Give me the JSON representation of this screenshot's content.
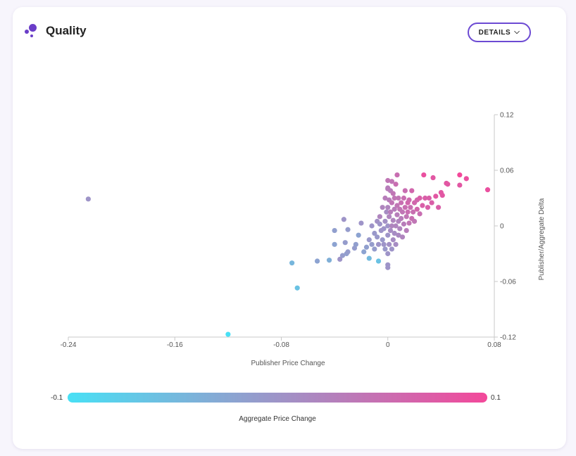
{
  "card": {
    "title": "Quality",
    "details_label": "DETAILS",
    "logo_color": "#6a3dc8",
    "accent_color": "#6c4ad3"
  },
  "chart_data": {
    "type": "scatter",
    "title": "",
    "xlabel": "Publisher Price Change",
    "ylabel": "Publisher/Aggregate Delta",
    "xlim": [
      -0.24,
      0.08
    ],
    "ylim": [
      -0.12,
      0.12
    ],
    "x_ticks": [
      "-0.24",
      "-0.16",
      "-0.08",
      "0",
      "0.08"
    ],
    "y_ticks": [
      "0.12",
      "0.06",
      "0",
      "-0.06",
      "-0.12"
    ],
    "color_scale": {
      "label": "Aggregate Price Change",
      "min_label": "-0.1",
      "max_label": "0.1",
      "min": -0.1,
      "max": 0.1,
      "min_color": "#48e0f5",
      "max_color": "#f3489a"
    },
    "points": [
      {
        "x": -0.225,
        "y": 0.029,
        "c": 0.0
      },
      {
        "x": -0.12,
        "y": -0.117,
        "c": -0.1
      },
      {
        "x": -0.072,
        "y": -0.04,
        "c": -0.045
      },
      {
        "x": -0.068,
        "y": -0.067,
        "c": -0.06
      },
      {
        "x": -0.053,
        "y": -0.038,
        "c": -0.02
      },
      {
        "x": -0.044,
        "y": -0.037,
        "c": -0.035
      },
      {
        "x": -0.036,
        "y": -0.036,
        "c": 0.0
      },
      {
        "x": -0.034,
        "y": -0.032,
        "c": -0.01
      },
      {
        "x": -0.032,
        "y": -0.018,
        "c": -0.01
      },
      {
        "x": -0.031,
        "y": -0.03,
        "c": -0.015
      },
      {
        "x": -0.04,
        "y": -0.02,
        "c": -0.02
      },
      {
        "x": -0.04,
        "y": -0.005,
        "c": -0.015
      },
      {
        "x": -0.03,
        "y": -0.028,
        "c": -0.01
      },
      {
        "x": -0.025,
        "y": -0.024,
        "c": -0.01
      },
      {
        "x": -0.033,
        "y": 0.007,
        "c": 0.0
      },
      {
        "x": -0.03,
        "y": -0.004,
        "c": -0.01
      },
      {
        "x": -0.024,
        "y": -0.02,
        "c": -0.015
      },
      {
        "x": -0.022,
        "y": -0.01,
        "c": -0.02
      },
      {
        "x": -0.02,
        "y": 0.003,
        "c": 0.0
      },
      {
        "x": -0.018,
        "y": -0.028,
        "c": -0.02
      },
      {
        "x": -0.016,
        "y": -0.023,
        "c": -0.015
      },
      {
        "x": -0.014,
        "y": -0.035,
        "c": -0.05
      },
      {
        "x": -0.014,
        "y": -0.015,
        "c": -0.005
      },
      {
        "x": -0.012,
        "y": -0.02,
        "c": -0.01
      },
      {
        "x": -0.012,
        "y": 0.0,
        "c": 0.0
      },
      {
        "x": -0.01,
        "y": -0.008,
        "c": -0.005
      },
      {
        "x": -0.01,
        "y": -0.025,
        "c": -0.01
      },
      {
        "x": -0.008,
        "y": 0.005,
        "c": 0.005
      },
      {
        "x": -0.008,
        "y": -0.012,
        "c": -0.005
      },
      {
        "x": -0.007,
        "y": -0.02,
        "c": 0.0
      },
      {
        "x": -0.006,
        "y": 0.01,
        "c": 0.02
      },
      {
        "x": -0.006,
        "y": 0.002,
        "c": 0.0
      },
      {
        "x": -0.005,
        "y": -0.005,
        "c": 0.0
      },
      {
        "x": -0.004,
        "y": -0.015,
        "c": -0.005
      },
      {
        "x": -0.007,
        "y": -0.038,
        "c": -0.06
      },
      {
        "x": -0.004,
        "y": 0.02,
        "c": 0.02
      },
      {
        "x": -0.003,
        "y": -0.02,
        "c": 0.0
      },
      {
        "x": -0.003,
        "y": -0.003,
        "c": 0.0
      },
      {
        "x": -0.002,
        "y": 0.005,
        "c": 0.005
      },
      {
        "x": -0.002,
        "y": 0.03,
        "c": 0.03
      },
      {
        "x": -0.002,
        "y": -0.025,
        "c": -0.005
      },
      {
        "x": -0.001,
        "y": 0.015,
        "c": 0.01
      },
      {
        "x": 0.0,
        "y": -0.042,
        "c": 0.0
      },
      {
        "x": 0.0,
        "y": -0.045,
        "c": 0.0
      },
      {
        "x": 0.0,
        "y": 0.0,
        "c": 0.0
      },
      {
        "x": 0.0,
        "y": -0.01,
        "c": 0.0
      },
      {
        "x": 0.0,
        "y": -0.03,
        "c": 0.0
      },
      {
        "x": 0.0,
        "y": 0.02,
        "c": 0.02
      },
      {
        "x": 0.0,
        "y": 0.04,
        "c": 0.03
      },
      {
        "x": 0.0,
        "y": 0.041,
        "c": 0.03
      },
      {
        "x": 0.0,
        "y": 0.049,
        "c": 0.04
      },
      {
        "x": 0.001,
        "y": -0.02,
        "c": 0.005
      },
      {
        "x": 0.001,
        "y": 0.01,
        "c": 0.02
      },
      {
        "x": 0.001,
        "y": 0.028,
        "c": 0.03
      },
      {
        "x": 0.002,
        "y": -0.005,
        "c": 0.01
      },
      {
        "x": 0.002,
        "y": 0.015,
        "c": 0.03
      },
      {
        "x": 0.002,
        "y": 0.038,
        "c": 0.03
      },
      {
        "x": 0.003,
        "y": -0.025,
        "c": 0.0
      },
      {
        "x": 0.003,
        "y": 0.0,
        "c": 0.02
      },
      {
        "x": 0.003,
        "y": 0.025,
        "c": 0.04
      },
      {
        "x": 0.003,
        "y": 0.048,
        "c": 0.04
      },
      {
        "x": 0.004,
        "y": -0.015,
        "c": 0.01
      },
      {
        "x": 0.004,
        "y": 0.006,
        "c": 0.02
      },
      {
        "x": 0.004,
        "y": 0.035,
        "c": 0.04
      },
      {
        "x": 0.005,
        "y": -0.008,
        "c": 0.01
      },
      {
        "x": 0.005,
        "y": 0.018,
        "c": 0.03
      },
      {
        "x": 0.005,
        "y": 0.03,
        "c": 0.04
      },
      {
        "x": 0.006,
        "y": -0.02,
        "c": 0.01
      },
      {
        "x": 0.006,
        "y": 0.0,
        "c": 0.02
      },
      {
        "x": 0.006,
        "y": 0.045,
        "c": 0.05
      },
      {
        "x": 0.007,
        "y": 0.012,
        "c": 0.03
      },
      {
        "x": 0.007,
        "y": 0.022,
        "c": 0.04
      },
      {
        "x": 0.007,
        "y": 0.055,
        "c": 0.05
      },
      {
        "x": 0.008,
        "y": -0.01,
        "c": 0.015
      },
      {
        "x": 0.008,
        "y": 0.005,
        "c": 0.02
      },
      {
        "x": 0.008,
        "y": 0.03,
        "c": 0.04
      },
      {
        "x": 0.009,
        "y": 0.018,
        "c": 0.04
      },
      {
        "x": 0.009,
        "y": -0.003,
        "c": 0.02
      },
      {
        "x": 0.01,
        "y": 0.025,
        "c": 0.05
      },
      {
        "x": 0.01,
        "y": 0.008,
        "c": 0.03
      },
      {
        "x": 0.011,
        "y": -0.012,
        "c": 0.02
      },
      {
        "x": 0.011,
        "y": 0.015,
        "c": 0.04
      },
      {
        "x": 0.012,
        "y": 0.002,
        "c": 0.03
      },
      {
        "x": 0.012,
        "y": 0.03,
        "c": 0.05
      },
      {
        "x": 0.013,
        "y": 0.02,
        "c": 0.05
      },
      {
        "x": 0.013,
        "y": 0.038,
        "c": 0.05
      },
      {
        "x": 0.014,
        "y": 0.01,
        "c": 0.04
      },
      {
        "x": 0.014,
        "y": -0.005,
        "c": 0.03
      },
      {
        "x": 0.015,
        "y": 0.025,
        "c": 0.06
      },
      {
        "x": 0.015,
        "y": 0.015,
        "c": 0.05
      },
      {
        "x": 0.016,
        "y": 0.003,
        "c": 0.04
      },
      {
        "x": 0.016,
        "y": 0.028,
        "c": 0.055
      },
      {
        "x": 0.017,
        "y": 0.02,
        "c": 0.05
      },
      {
        "x": 0.018,
        "y": 0.008,
        "c": 0.05
      },
      {
        "x": 0.018,
        "y": 0.038,
        "c": 0.06
      },
      {
        "x": 0.019,
        "y": 0.015,
        "c": 0.05
      },
      {
        "x": 0.02,
        "y": 0.025,
        "c": 0.06
      },
      {
        "x": 0.02,
        "y": 0.005,
        "c": 0.04
      },
      {
        "x": 0.022,
        "y": 0.018,
        "c": 0.06
      },
      {
        "x": 0.022,
        "y": 0.028,
        "c": 0.06
      },
      {
        "x": 0.024,
        "y": 0.013,
        "c": 0.05
      },
      {
        "x": 0.024,
        "y": 0.03,
        "c": 0.07
      },
      {
        "x": 0.026,
        "y": 0.022,
        "c": 0.07
      },
      {
        "x": 0.027,
        "y": 0.055,
        "c": 0.09
      },
      {
        "x": 0.028,
        "y": 0.03,
        "c": 0.07
      },
      {
        "x": 0.03,
        "y": 0.02,
        "c": 0.07
      },
      {
        "x": 0.031,
        "y": 0.03,
        "c": 0.07
      },
      {
        "x": 0.033,
        "y": 0.025,
        "c": 0.07
      },
      {
        "x": 0.034,
        "y": 0.052,
        "c": 0.08
      },
      {
        "x": 0.036,
        "y": 0.032,
        "c": 0.08
      },
      {
        "x": 0.038,
        "y": 0.02,
        "c": 0.07
      },
      {
        "x": 0.04,
        "y": 0.036,
        "c": 0.08
      },
      {
        "x": 0.041,
        "y": 0.033,
        "c": 0.08
      },
      {
        "x": 0.044,
        "y": 0.046,
        "c": 0.08
      },
      {
        "x": 0.045,
        "y": 0.045,
        "c": 0.08
      },
      {
        "x": 0.054,
        "y": 0.044,
        "c": 0.08
      },
      {
        "x": 0.054,
        "y": 0.055,
        "c": 0.1
      },
      {
        "x": 0.059,
        "y": 0.051,
        "c": 0.09
      },
      {
        "x": 0.075,
        "y": 0.039,
        "c": 0.09
      }
    ]
  }
}
